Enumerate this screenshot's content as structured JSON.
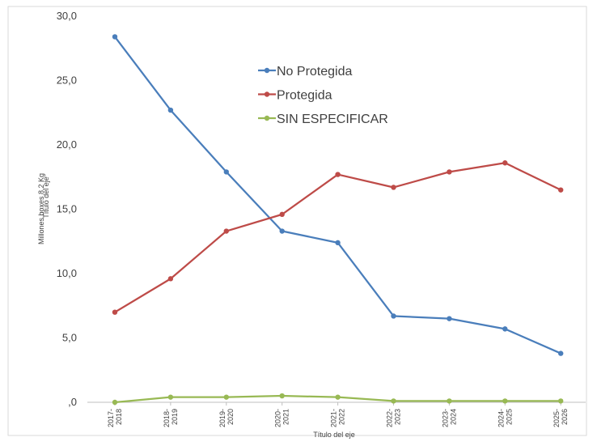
{
  "chart_data": {
    "type": "line",
    "title": "",
    "xlabel": "Título del eje",
    "ylabel": "Millones boxes 8,2 Kg",
    "ylabel_overlap": "Título del eje",
    "ylim": [
      0,
      30
    ],
    "yticks": [
      {
        "value": 0,
        "label": ",0"
      },
      {
        "value": 5,
        "label": "5,0"
      },
      {
        "value": 10,
        "label": "10,0"
      },
      {
        "value": 15,
        "label": "15,0"
      },
      {
        "value": 20,
        "label": "20,0"
      },
      {
        "value": 25,
        "label": "25,0"
      },
      {
        "value": 30,
        "label": "30,0"
      }
    ],
    "categories": [
      [
        "2017-",
        "2018"
      ],
      [
        "2018-",
        "2019"
      ],
      [
        "2019-",
        "2020"
      ],
      [
        "2020-",
        "2021"
      ],
      [
        "2021-",
        "2022"
      ],
      [
        "2022-",
        "2023"
      ],
      [
        "2023-",
        "2024"
      ],
      [
        "2024-",
        "2025"
      ],
      [
        "2025-",
        "2026"
      ]
    ],
    "legend_position": "top-center",
    "series": [
      {
        "name": "No Protegida",
        "color": "#4a7ebb",
        "values": [
          28.4,
          22.7,
          17.9,
          13.3,
          12.4,
          6.7,
          6.5,
          5.7,
          3.8
        ]
      },
      {
        "name": "Protegida",
        "color": "#be4b48",
        "values": [
          7.0,
          9.6,
          13.3,
          14.6,
          17.7,
          16.7,
          17.9,
          18.6,
          16.5
        ]
      },
      {
        "name": "SIN ESPECIFICAR",
        "color": "#98b954",
        "values": [
          0.0,
          0.4,
          0.4,
          0.5,
          0.4,
          0.1,
          0.1,
          0.1,
          0.1
        ]
      }
    ]
  }
}
